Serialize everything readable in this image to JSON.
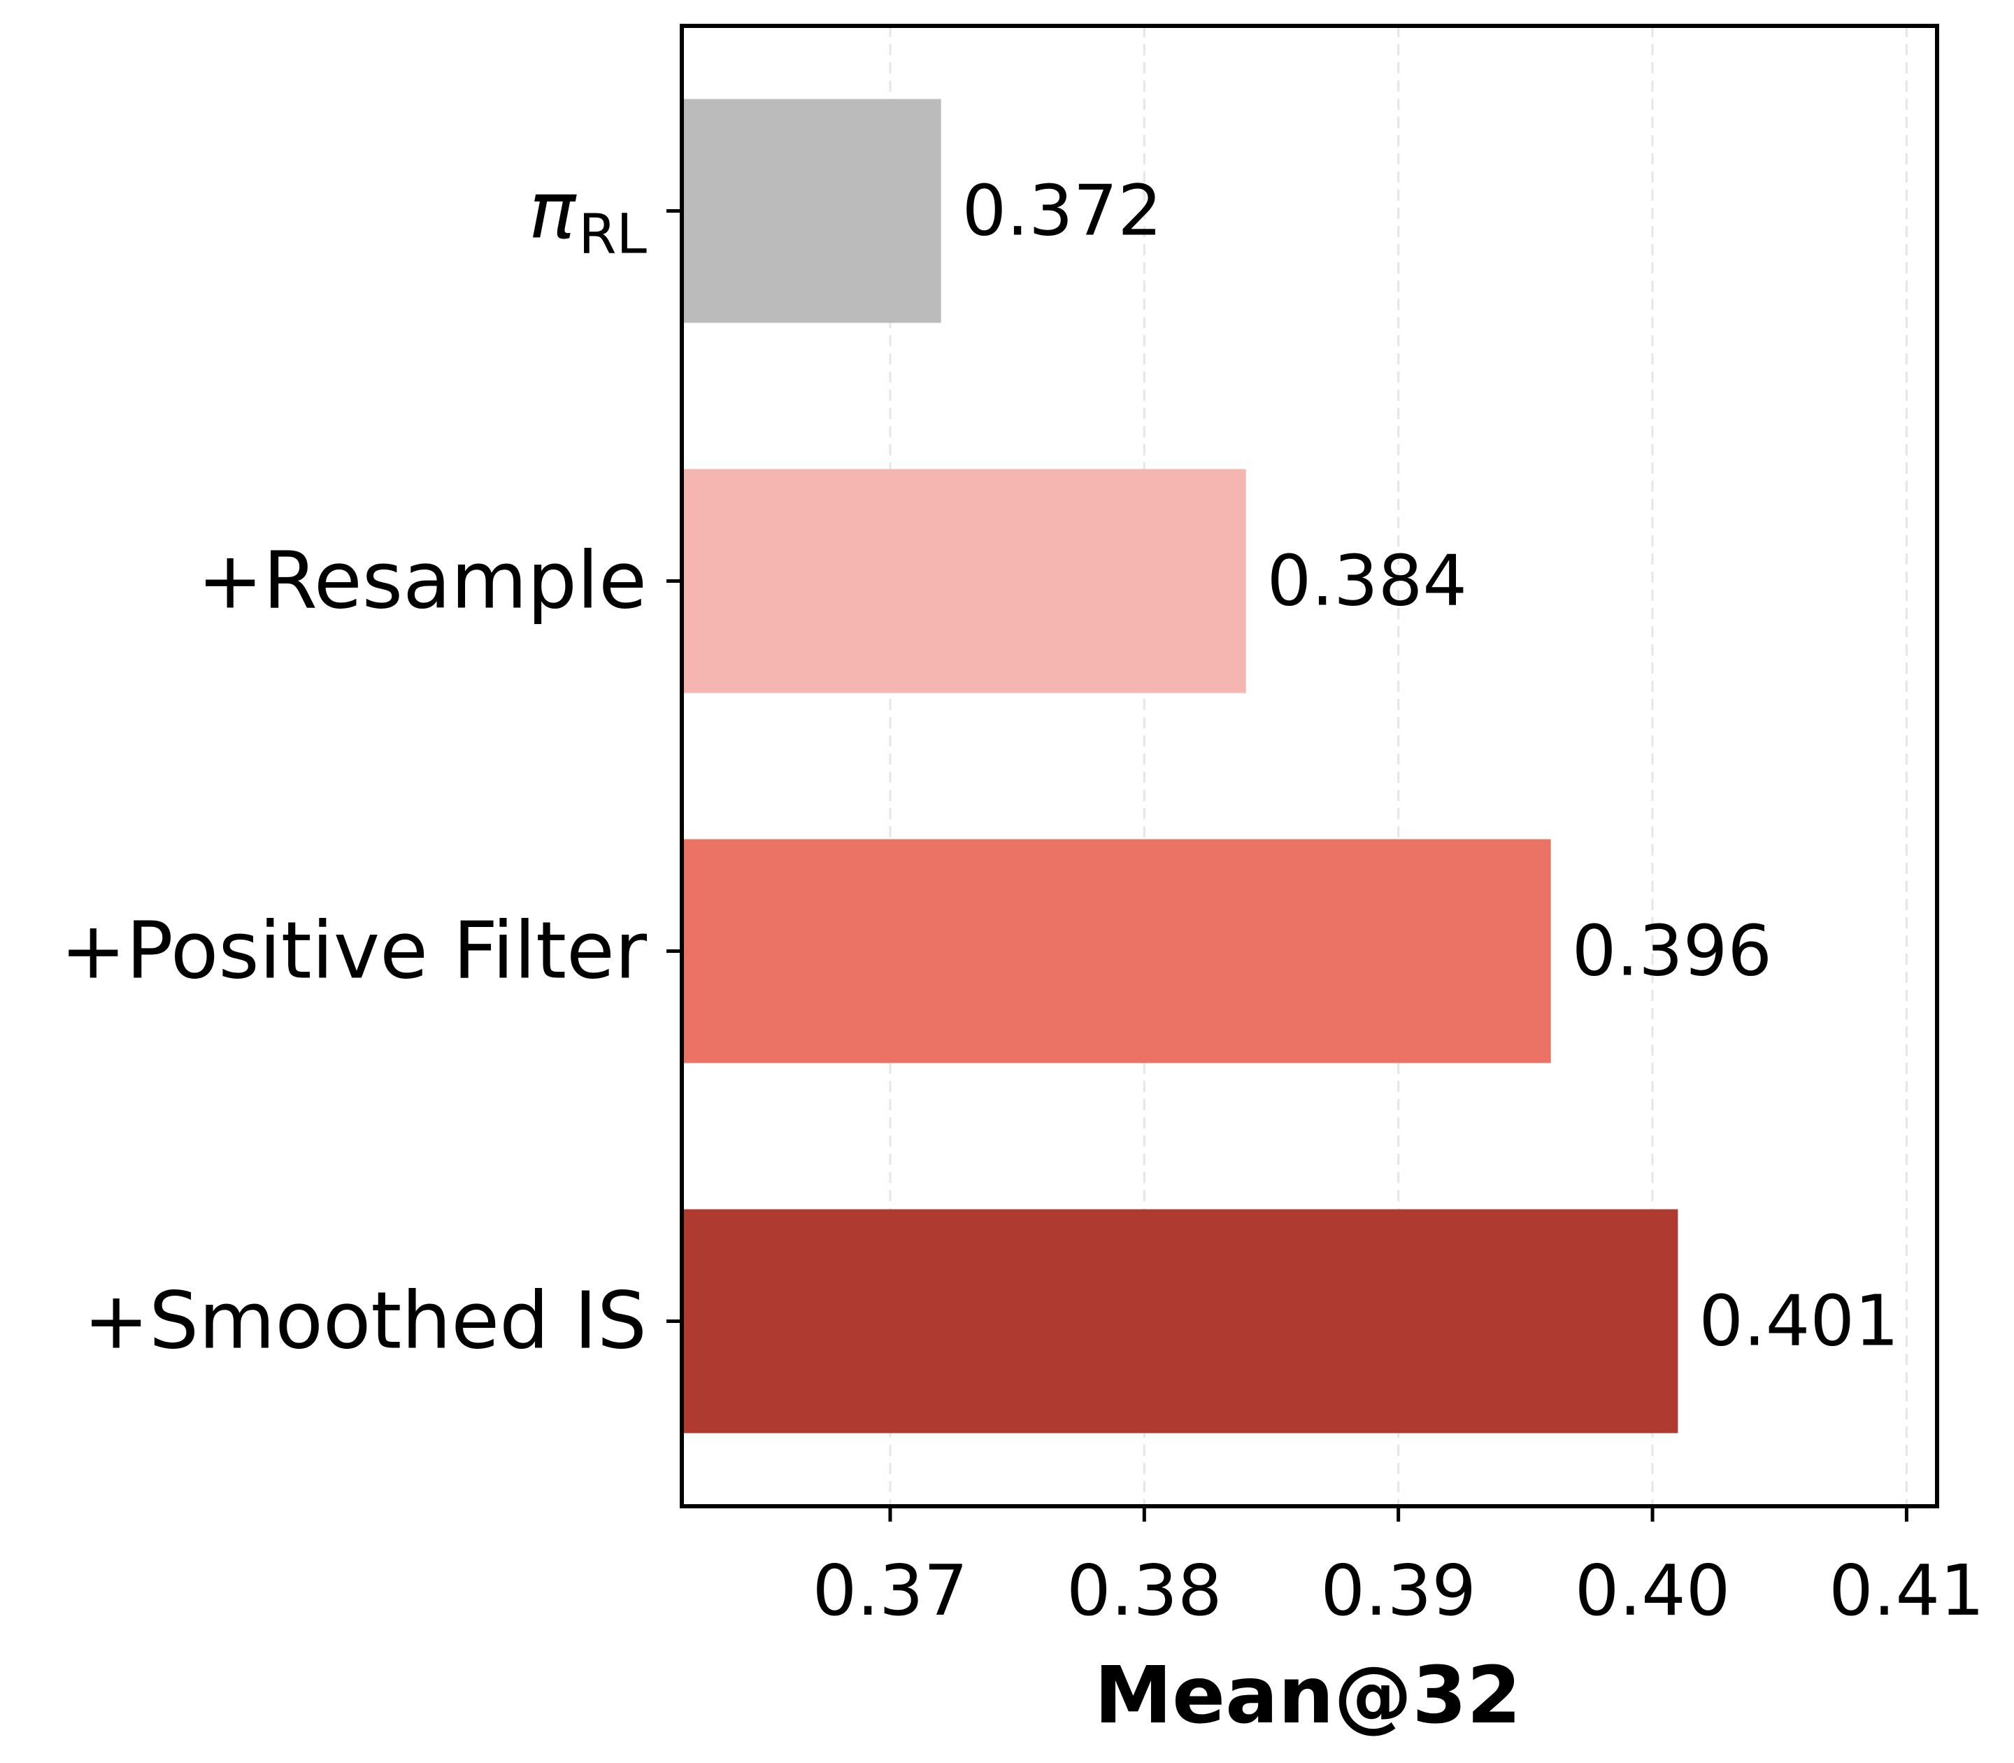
{
  "chart_data": {
    "type": "bar",
    "orientation": "horizontal",
    "categories": [
      {
        "main": "π",
        "sub": "RL"
      },
      {
        "main": "+Resample",
        "sub": ""
      },
      {
        "main": "+Positive Filter",
        "sub": ""
      },
      {
        "main": "+Smoothed IS",
        "sub": ""
      }
    ],
    "values": [
      0.372,
      0.384,
      0.396,
      0.401
    ],
    "value_labels": [
      "0.372",
      "0.384",
      "0.396",
      "0.401"
    ],
    "colors": [
      "#bbbbbb",
      "#f5b6b2",
      "#eb7366",
      "#ae3a30"
    ],
    "xlabel": "Mean@32",
    "ylabel": "",
    "title": "",
    "xlim": [
      0.3618,
      0.4112
    ],
    "xticks": [
      0.37,
      0.38,
      0.39,
      0.4,
      0.41
    ],
    "xtick_labels": [
      "0.37",
      "0.38",
      "0.39",
      "0.40",
      "0.41"
    ],
    "grid": "x-dashed",
    "legend": "none"
  }
}
